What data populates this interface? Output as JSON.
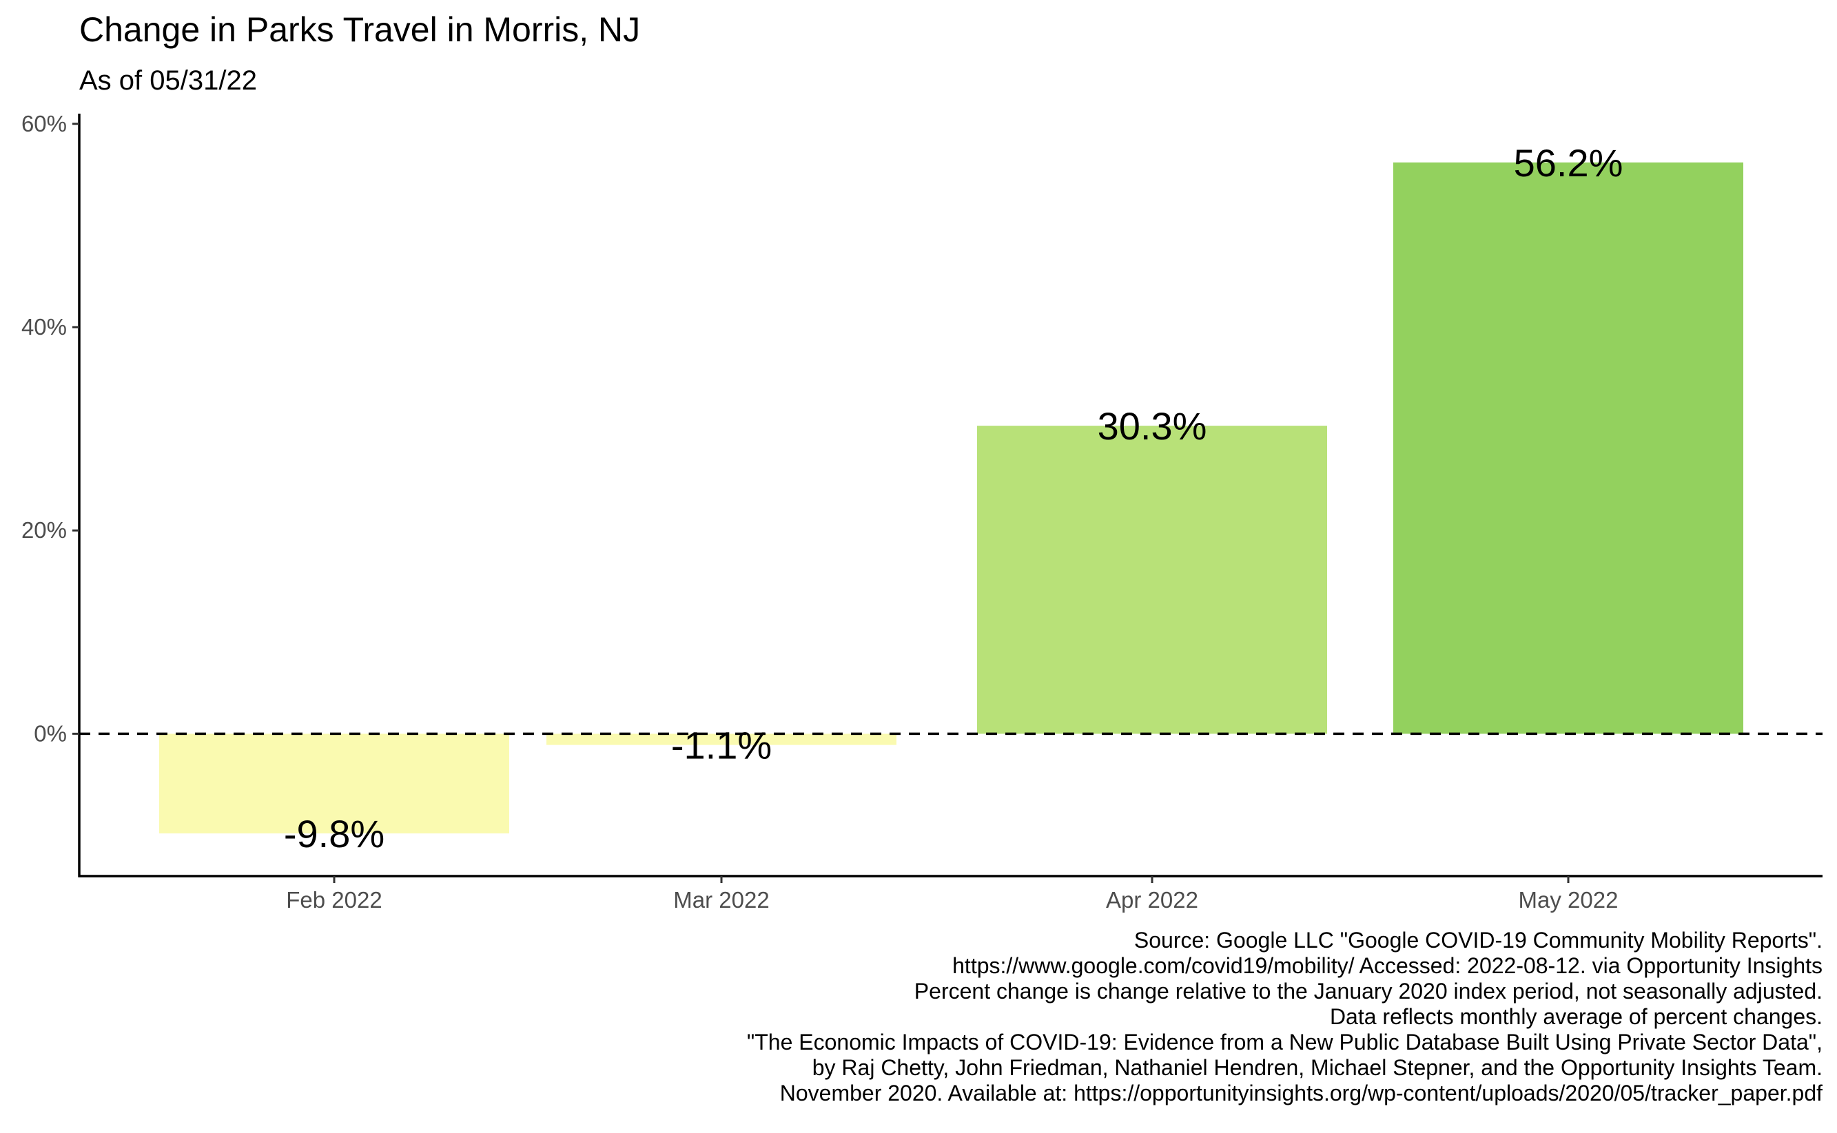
{
  "chart_data": {
    "type": "bar",
    "title": "Change in Parks Travel in Morris, NJ",
    "subtitle": "As of 05/31/22",
    "xlabel": "",
    "ylabel": "",
    "categories": [
      "Feb 2022",
      "Mar 2022",
      "Apr 2022",
      "May 2022"
    ],
    "values": [
      -9.8,
      -1.1,
      30.3,
      56.2
    ],
    "value_labels": [
      "-9.8%",
      "-1.1%",
      "30.3%",
      "56.2%"
    ],
    "bar_colors": [
      "#fafab0",
      "#fafab0",
      "#b8e178",
      "#93d15e"
    ],
    "ylim": [
      -14,
      61
    ],
    "y_ticks": [
      0,
      20,
      40,
      60
    ],
    "y_tick_labels": [
      "0%",
      "20%",
      "40%",
      "60%"
    ],
    "reference_line": {
      "value": 0,
      "style": "dashed"
    },
    "grid": false,
    "legend": "none",
    "caption": [
      "Source: Google LLC \"Google COVID-19 Community Mobility Reports\".",
      "https://www.google.com/covid19/mobility/ Accessed: 2022-08-12. via Opportunity Insights",
      "Percent change is change relative to the January 2020 index period, not seasonally adjusted.",
      "Data reflects monthly average of percent changes.",
      "\"The Economic Impacts of COVID-19: Evidence from a New Public Database Built Using Private Sector Data\",",
      "by Raj Chetty, John Friedman, Nathaniel Hendren, Michael Stepner, and the Opportunity Insights Team.",
      "November 2020. Available at: https://opportunityinsights.org/wp-content/uploads/2020/05/tracker_paper.pdf"
    ]
  }
}
